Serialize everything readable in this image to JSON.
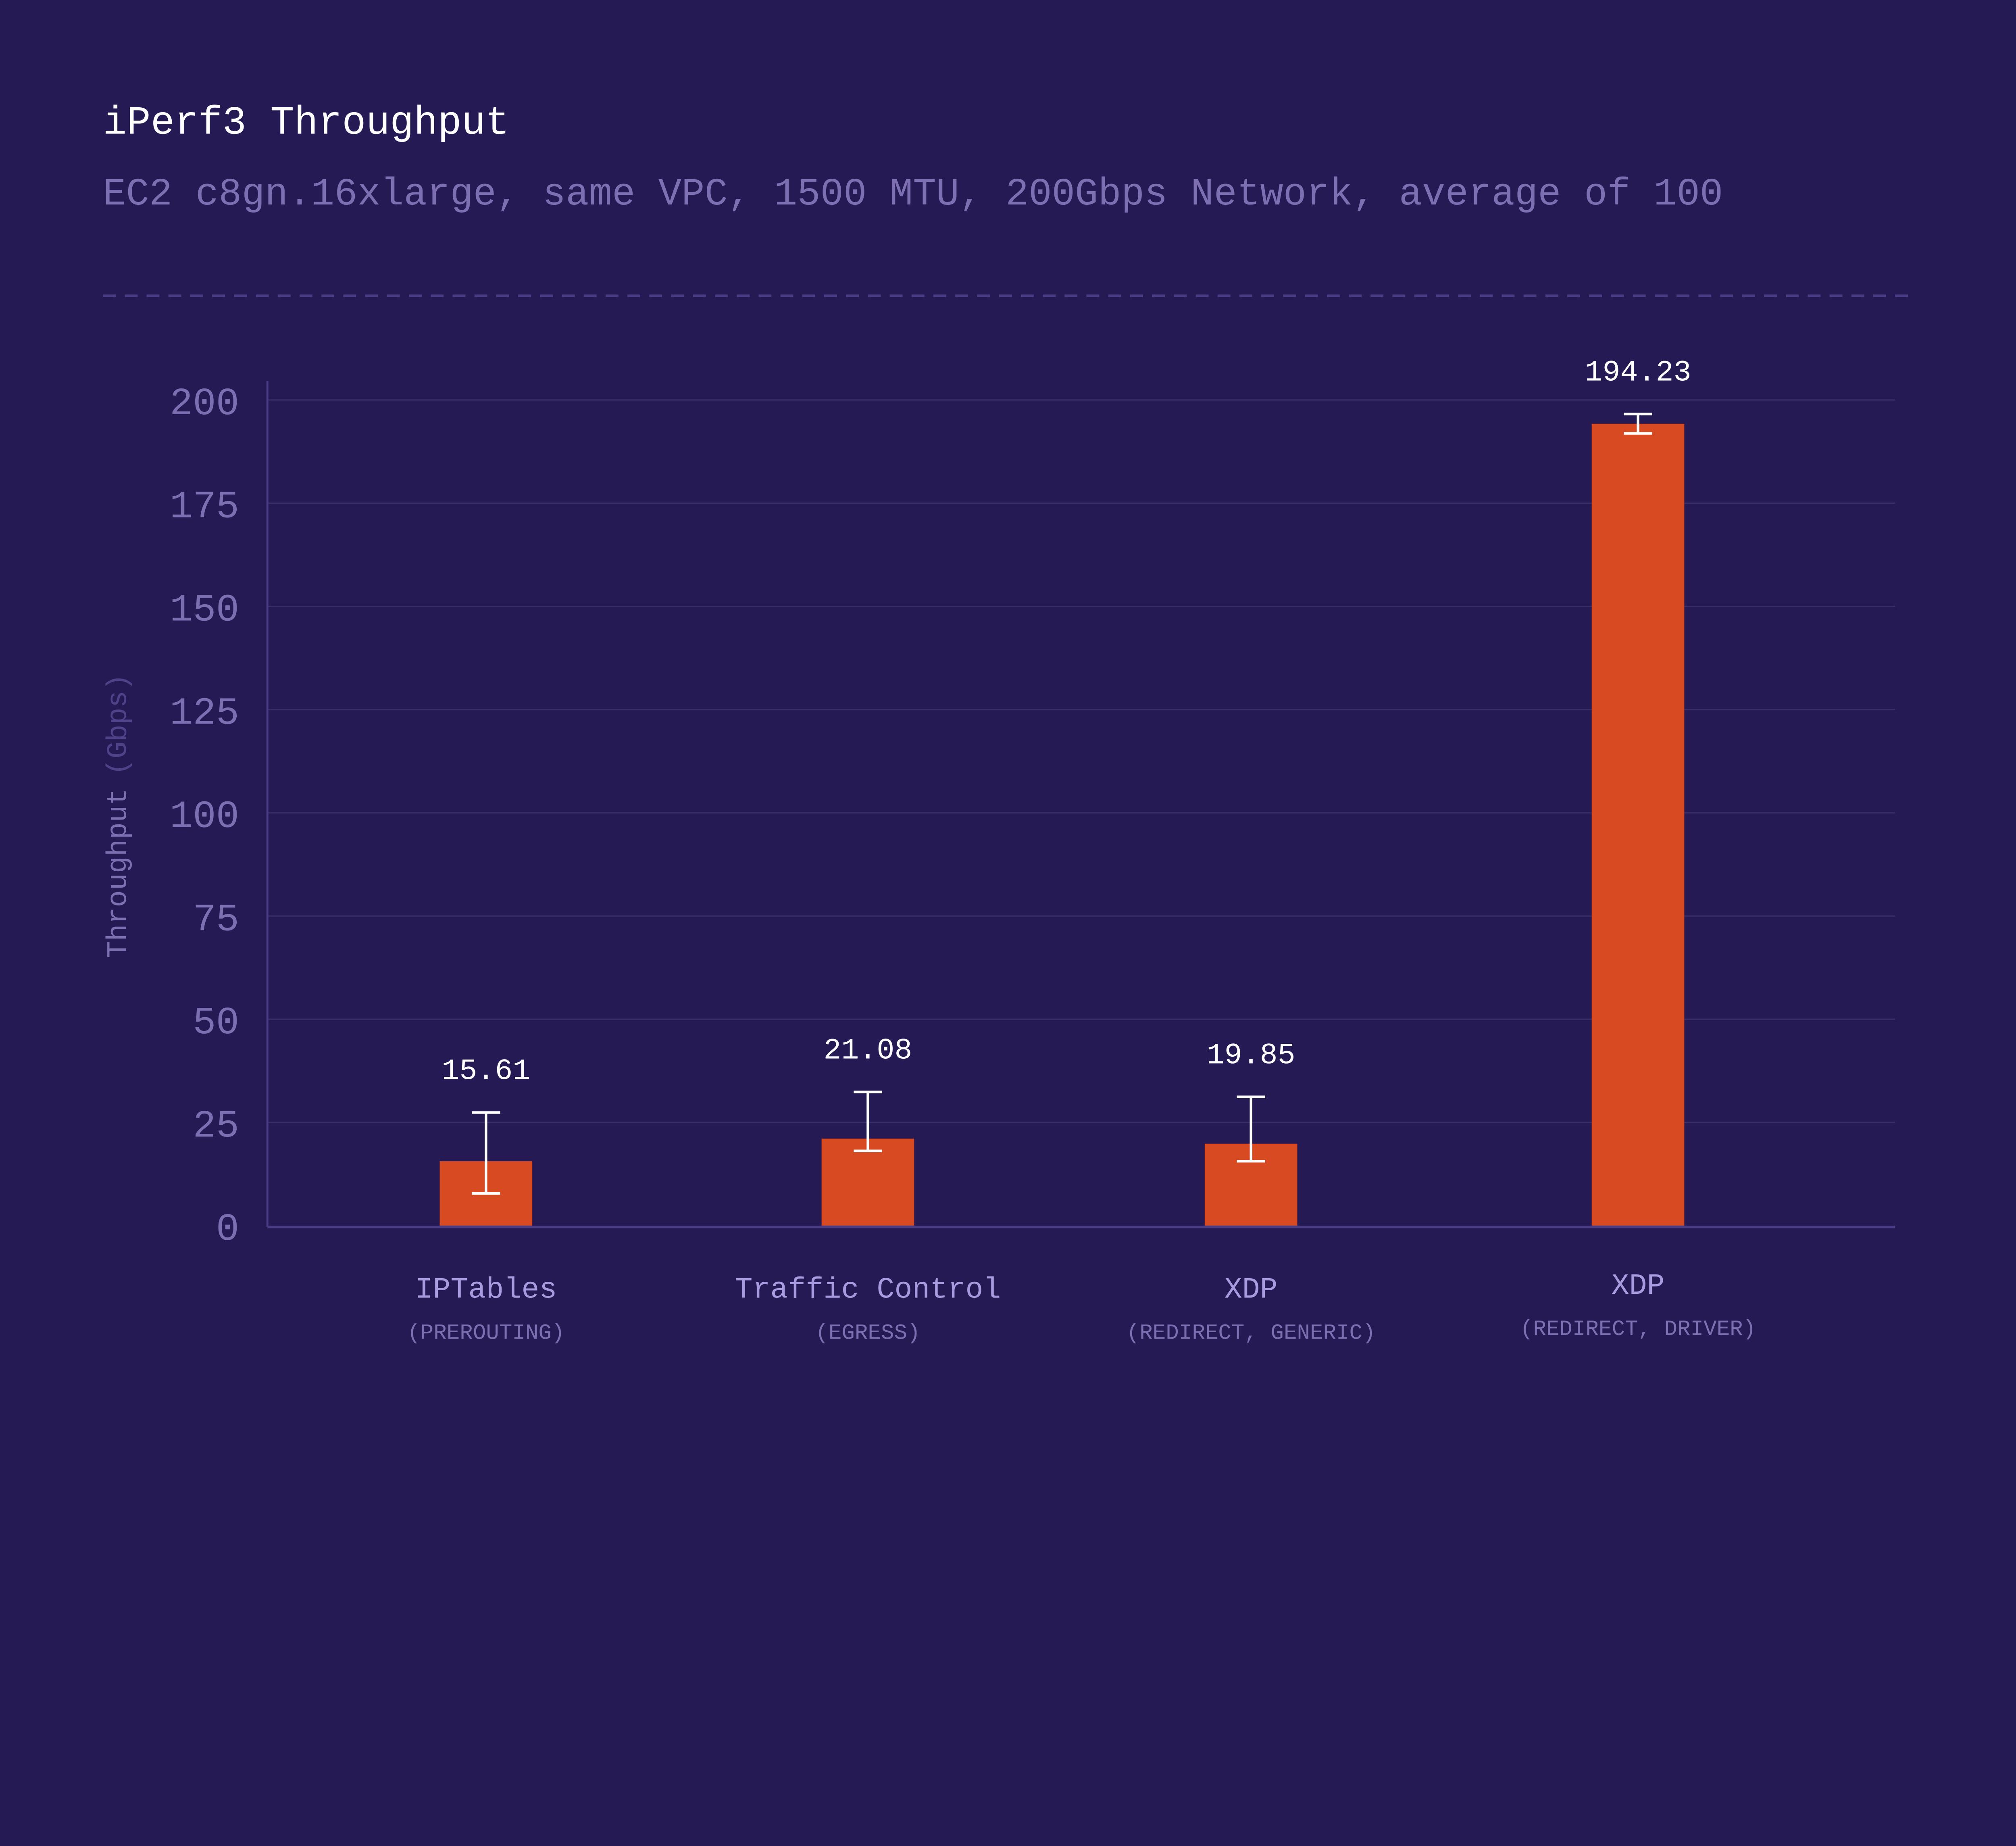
{
  "colors": {
    "background": "#261a55",
    "bar": "#d84a22",
    "error_bar": "#ffffff",
    "title": "#ffffff",
    "subtitle": "#7e6fb3",
    "axis_text": "#7e6fb3",
    "grid": "#3a2d6c"
  },
  "chart_data": {
    "type": "bar",
    "title": "iPerf3 Throughput",
    "subtitle": "EC2 c8gn.16xlarge, same VPC, 1500 MTU, 200Gbps Network, average of 100",
    "ylabel": "Throughput",
    "ylabel_unit": "(Gbps)",
    "ylim": [
      0,
      200
    ],
    "yticks": [
      0,
      25,
      50,
      75,
      100,
      125,
      150,
      175,
      200
    ],
    "grid": true,
    "categories": [
      {
        "label": "IPTables",
        "sublabel": "(PREROUTING)"
      },
      {
        "label": "Traffic Control",
        "sublabel": "(EGRESS)"
      },
      {
        "label": "XDP",
        "sublabel": "(REDIRECT, GENERIC)"
      },
      {
        "label": "XDP",
        "sublabel": "(REDIRECT, DRIVER)"
      }
    ],
    "values": [
      15.61,
      21.08,
      19.85,
      194.23
    ],
    "value_labels": [
      "15.61",
      "21.08",
      "19.85",
      "194.23"
    ],
    "error_low": [
      7.8,
      18.1,
      15.6,
      191.9
    ],
    "error_high": [
      27.4,
      32.4,
      31.2,
      196.6
    ]
  }
}
